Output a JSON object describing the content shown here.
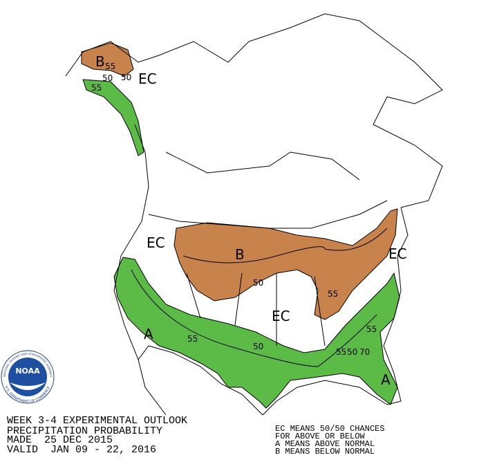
{
  "map": {
    "labels": [
      "B",
      "55",
      "50",
      "50",
      "EC",
      "55",
      "EC",
      "B",
      "50",
      "55",
      "EC",
      "EC",
      "A",
      "55",
      "50",
      "55",
      "55",
      "50",
      "70",
      "A"
    ]
  },
  "logo": {
    "name": "NOAA",
    "ring_top": "NATIONAL OCEANIC AND ATMOSPHERIC ADMINISTRATION",
    "ring_bottom": "U.S. DEPARTMENT OF COMMERCE"
  },
  "footer": {
    "title_lines": [
      "WEEK 3-4 EXPERIMENTAL OUTLOOK",
      "PRECIPITATION PROBABILITY",
      "MADE  25 DEC 2015",
      "VALID  JAN 09 - 22, 2016"
    ],
    "legend_lines": [
      "EC MEANS 50/50 CHANCES",
      "FOR ABOVE OR BELOW",
      "A MEANS ABOVE NORMAL",
      "B MEANS BELOW NORMAL"
    ]
  }
}
